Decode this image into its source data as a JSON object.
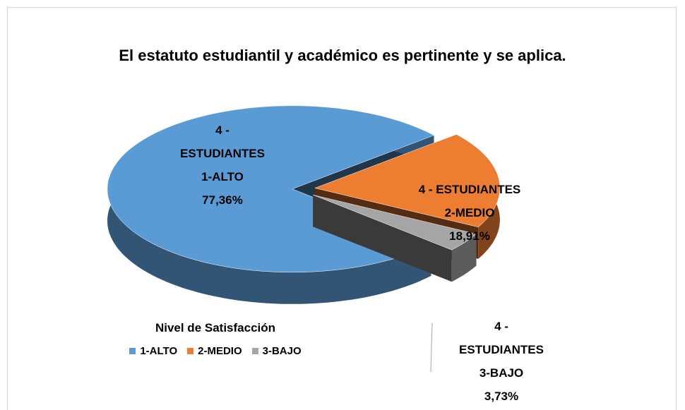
{
  "chart_data": {
    "type": "pie",
    "title": "El estatuto estudiantil y académico es pertinente y se aplica.",
    "series_name": "4 - ESTUDIANTES",
    "categories": [
      "1-ALTO",
      "2-MEDIO",
      "3-BAJO"
    ],
    "values": [
      77.36,
      18.91,
      3.73
    ],
    "value_labels": [
      "77,36%",
      "18,91%",
      "3,73%"
    ],
    "colors": [
      "#5b9bd5",
      "#ed7d31",
      "#a5a5a5"
    ],
    "legend_title": "Nivel de Satisfacción",
    "legend": "bottom-left"
  }
}
